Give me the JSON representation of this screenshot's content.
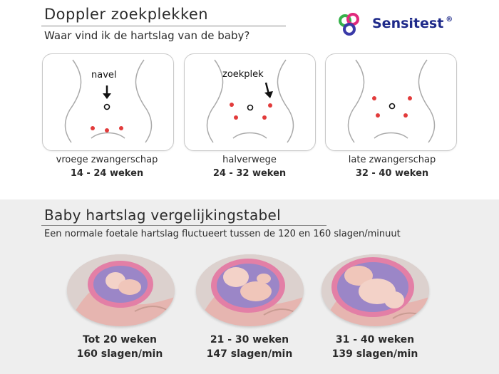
{
  "header": {
    "title": "Doppler zoekplekken",
    "subtitle": "Waar vind ik de hartslag van de baby?"
  },
  "logo": {
    "brand": "Sensitest"
  },
  "locations": [
    {
      "label": "vroege zwangerschap",
      "range": "14 - 24 weken",
      "annotation": "navel"
    },
    {
      "label": "halverwege",
      "range": "24 - 32 weken",
      "annotation": "zoekplek"
    },
    {
      "label": "late zwangerschap",
      "range": "32 - 40 weken",
      "annotation": ""
    }
  ],
  "table": {
    "title": "Baby hartslag vergelijkingstabel",
    "subtitle": "Een normale foetale hartslag fluctueert tussen de 120 en 160 slagen/minuut",
    "rows": [
      {
        "weeks": "Tot 20 weken",
        "rate": "160 slagen/min"
      },
      {
        "weeks": "21 - 30 weken",
        "rate": "147 slagen/min"
      },
      {
        "weeks": "31 - 40 weken",
        "rate": "139 slagen/min"
      }
    ]
  },
  "colors": {
    "spot": "#e23b3b",
    "brand": "#1e2a8a",
    "section_bg": "#eeeeee"
  },
  "icons": [
    "sensitest-logo-icon",
    "arrow-down-icon",
    "navel-icon",
    "spot-icon",
    "fetus-illustration"
  ]
}
